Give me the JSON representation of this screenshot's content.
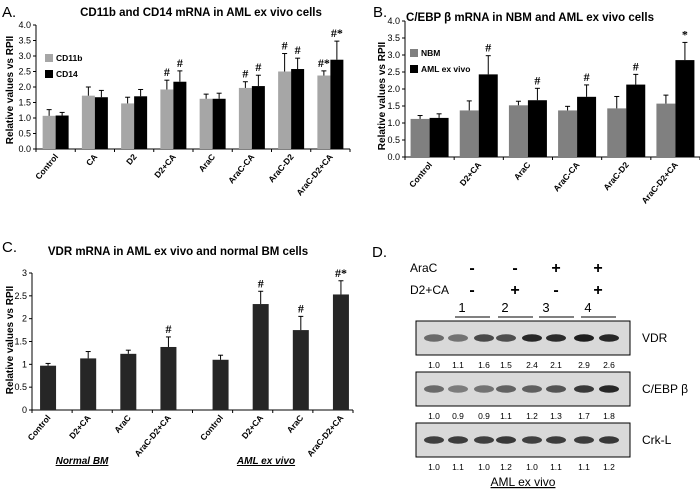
{
  "chart_data": [
    {
      "panel": "A.",
      "type": "bar",
      "title": "CD11b and CD14 mRNA in AML ex vivo cells",
      "ylabel": "Relative values vs RPII",
      "ylim": [
        0,
        4
      ],
      "yticks": [
        "0.0",
        "0.5",
        "1.0",
        "1.5",
        "2.0",
        "2.5",
        "3.0",
        "3.5",
        "4.0"
      ],
      "categories": [
        "Control",
        "CA",
        "D2",
        "D2+CA",
        "AraC",
        "AraC-CA",
        "AraC-D2",
        "AraC-D2+CA"
      ],
      "series": [
        {
          "name": "CD11b",
          "color": "#a6a6a6",
          "values": [
            1.07,
            1.72,
            1.47,
            1.92,
            1.62,
            1.97,
            2.5,
            2.37
          ],
          "errors": [
            0.2,
            0.28,
            0.2,
            0.3,
            0.15,
            0.2,
            0.58,
            0.15
          ]
        },
        {
          "name": "CD14",
          "color": "#000000",
          "values": [
            1.08,
            1.67,
            1.7,
            2.17,
            1.62,
            2.03,
            2.58,
            2.88
          ],
          "errors": [
            0.1,
            0.22,
            0.22,
            0.35,
            0.18,
            0.35,
            0.35,
            0.6
          ]
        }
      ],
      "annotations": [
        {
          "category": "D2+CA",
          "series": "CD11b",
          "text": "#"
        },
        {
          "category": "D2+CA",
          "series": "CD14",
          "text": "#"
        },
        {
          "category": "AraC-CA",
          "series": "CD11b",
          "text": "#"
        },
        {
          "category": "AraC-CA",
          "series": "CD14",
          "text": "#"
        },
        {
          "category": "AraC-D2",
          "series": "CD11b",
          "text": "#"
        },
        {
          "category": "AraC-D2",
          "series": "CD14",
          "text": "#"
        },
        {
          "category": "AraC-D2+CA",
          "series": "CD11b",
          "text": "#*"
        },
        {
          "category": "AraC-D2+CA",
          "series": "CD14",
          "text": "#*"
        }
      ]
    },
    {
      "panel": "B.",
      "type": "bar",
      "title": "C/EBP β mRNA in NBM and AML ex vivo cells",
      "ylabel": "Relative values vs RPII",
      "ylim": [
        0,
        4
      ],
      "yticks": [
        "0.0",
        "0.5",
        "1.0",
        "1.5",
        "2.0",
        "2.5",
        "3.0",
        "3.5",
        "4.0"
      ],
      "categories": [
        "Control",
        "D2+CA",
        "AraC",
        "AraC-CA",
        "AraC-D2",
        "AraC-D2+CA"
      ],
      "series": [
        {
          "name": "NBM",
          "color": "#808080",
          "values": [
            1.12,
            1.37,
            1.52,
            1.37,
            1.43,
            1.57
          ],
          "errors": [
            0.1,
            0.28,
            0.12,
            0.12,
            0.35,
            0.25
          ]
        },
        {
          "name": "AML ex vivo",
          "color": "#000000",
          "values": [
            1.15,
            2.43,
            1.67,
            1.77,
            2.13,
            2.85
          ],
          "errors": [
            0.12,
            0.55,
            0.35,
            0.35,
            0.3,
            0.52
          ]
        }
      ],
      "annotations": [
        {
          "category": "D2+CA",
          "series": "AML ex vivo",
          "text": "#"
        },
        {
          "category": "AraC",
          "series": "AML ex vivo",
          "text": "#"
        },
        {
          "category": "AraC-CA",
          "series": "AML ex vivo",
          "text": "#"
        },
        {
          "category": "AraC-D2",
          "series": "AML ex vivo",
          "text": "#"
        },
        {
          "category": "AraC-D2+CA",
          "series": "AML ex vivo",
          "text": "*"
        }
      ]
    },
    {
      "panel": "C.",
      "type": "bar",
      "title": "VDR mRNA in AML ex vivo and normal BM cells",
      "ylabel": "Relative values vs RPII",
      "ylim": [
        0,
        3
      ],
      "yticks": [
        "0",
        "0.5",
        "1",
        "1.5",
        "2",
        "2.5",
        "3"
      ],
      "categories": [
        "Control",
        "D2+CA",
        "AraC",
        "AraC-D2+CA",
        "Control",
        "D2+CA",
        "AraC",
        "AraC-D2+CA"
      ],
      "groups": [
        "Normal BM",
        "AML ex vivo"
      ],
      "series": [
        {
          "name": "VDR",
          "color": "#262626",
          "values": [
            0.97,
            1.13,
            1.23,
            1.38,
            1.1,
            2.32,
            1.75,
            2.53
          ],
          "errors": [
            0.05,
            0.15,
            0.08,
            0.22,
            0.1,
            0.28,
            0.3,
            0.3
          ]
        }
      ],
      "annotations": [
        {
          "index": 3,
          "text": "#"
        },
        {
          "index": 5,
          "text": "#"
        },
        {
          "index": 6,
          "text": "#"
        },
        {
          "index": 7,
          "text": "#*"
        }
      ]
    }
  ],
  "western_blot": {
    "panel": "D.",
    "treatments": [
      {
        "label": "AraC",
        "signs": [
          "-",
          "-",
          "+",
          "+"
        ]
      },
      {
        "label": "D2+CA",
        "signs": [
          "-",
          "+",
          "-",
          "+"
        ]
      }
    ],
    "lanes": [
      "1",
      "2",
      "3",
      "4"
    ],
    "bands": [
      {
        "label": "VDR",
        "values": [
          "1.0",
          "1.1",
          "1.6",
          "1.5",
          "2.4",
          "2.1",
          "2.9",
          "2.6"
        ],
        "intensity": [
          0.55,
          0.5,
          0.75,
          0.72,
          0.95,
          0.92,
          1.0,
          0.95
        ]
      },
      {
        "label": "C/EBP β",
        "values": [
          "1.0",
          "0.9",
          "0.9",
          "1.1",
          "1.2",
          "1.3",
          "1.7",
          "1.8"
        ],
        "intensity": [
          0.55,
          0.45,
          0.5,
          0.6,
          0.62,
          0.68,
          0.85,
          0.95
        ]
      },
      {
        "label": "Crk-L",
        "values": [
          "1.0",
          "1.1",
          "1.0",
          "1.2",
          "1.0",
          "1.1",
          "1.1",
          "1.2"
        ],
        "intensity": [
          0.8,
          0.82,
          0.8,
          0.85,
          0.8,
          0.82,
          0.82,
          0.85
        ]
      }
    ],
    "caption": "AML ex vivo"
  }
}
